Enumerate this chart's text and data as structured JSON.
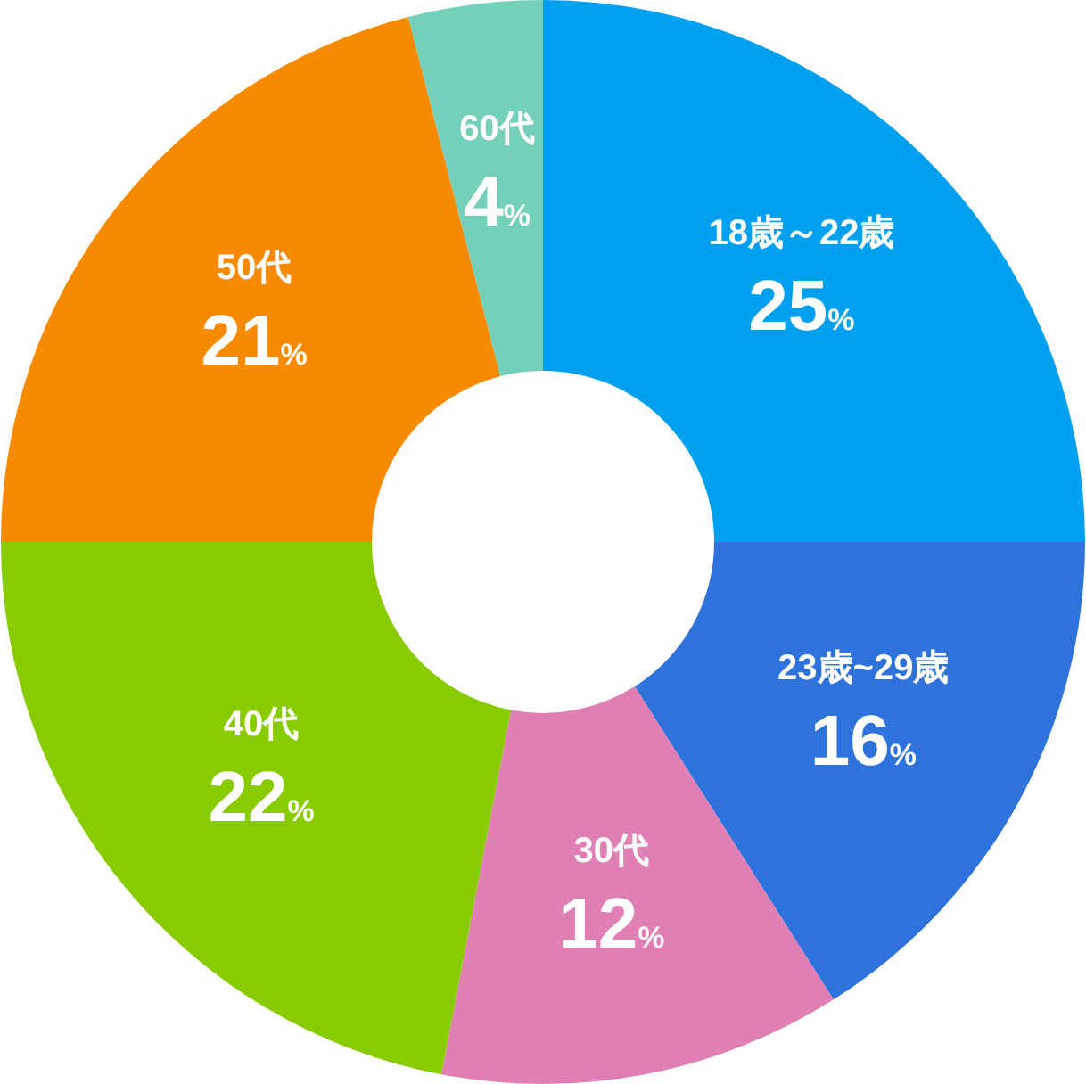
{
  "chart_data": {
    "type": "donut",
    "categories": [
      "18歳～22歳",
      "23歳~29歳",
      "30代",
      "40代",
      "50代",
      "60代"
    ],
    "values": [
      25,
      16,
      12,
      22,
      21,
      4
    ],
    "value_labels": [
      "25%",
      "16%",
      "12%",
      "22%",
      "21%",
      "4%"
    ],
    "colors": [
      "#00a0f0",
      "#2e72db",
      "#e07fb3",
      "#88cc00",
      "#f88a00",
      "#74d0b8"
    ]
  }
}
